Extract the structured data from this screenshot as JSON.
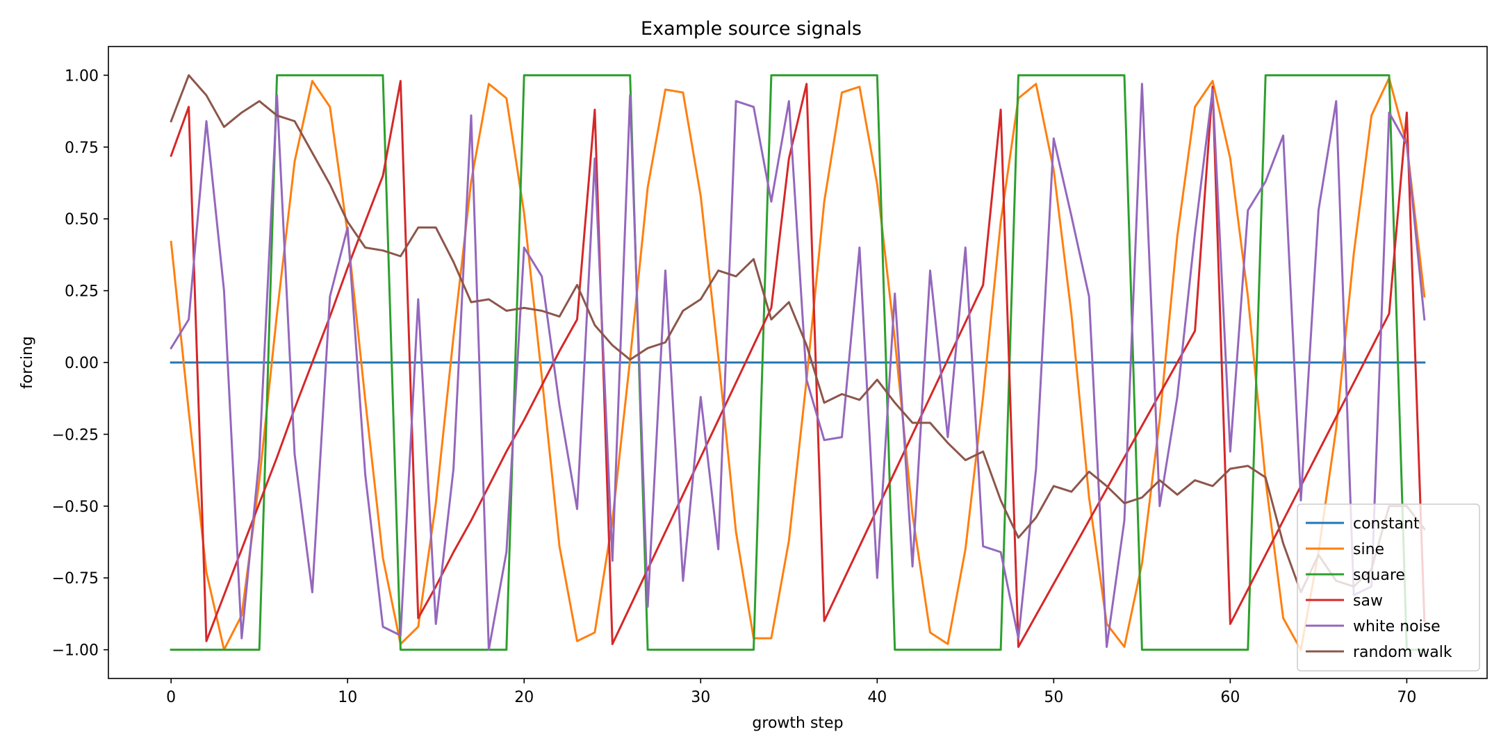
{
  "chart_data": {
    "type": "line",
    "title": "Example source signals",
    "xlabel": "growth step",
    "ylabel": "forcing",
    "xlim": [
      -3.55,
      74.55
    ],
    "ylim": [
      -1.1,
      1.1
    ],
    "xticks": [
      0,
      10,
      20,
      30,
      40,
      50,
      60,
      70
    ],
    "xtick_labels": [
      "0",
      "10",
      "20",
      "30",
      "40",
      "50",
      "60",
      "70"
    ],
    "yticks": [
      1.0,
      0.75,
      0.5,
      0.25,
      0.0,
      -0.25,
      -0.5,
      -0.75,
      -1.0
    ],
    "ytick_labels": [
      "1.00",
      "0.75",
      "0.50",
      "0.25",
      "0.00",
      "−0.25",
      "−0.50",
      "−0.75",
      "−1.00"
    ],
    "grid": false,
    "legend_position": "lower-right",
    "series": [
      {
        "name": "constant",
        "color": "#1f77b4",
        "values": [
          0,
          0,
          0,
          0,
          0,
          0,
          0,
          0,
          0,
          0,
          0,
          0,
          0,
          0,
          0,
          0,
          0,
          0,
          0,
          0,
          0,
          0,
          0,
          0,
          0,
          0,
          0,
          0,
          0,
          0,
          0,
          0,
          0,
          0,
          0,
          0,
          0,
          0,
          0,
          0,
          0,
          0,
          0,
          0,
          0,
          0,
          0,
          0,
          0,
          0,
          0,
          0,
          0,
          0,
          0,
          0,
          0,
          0,
          0,
          0,
          0,
          0,
          0,
          0,
          0,
          0,
          0,
          0,
          0,
          0,
          0,
          0
        ]
      },
      {
        "name": "sine",
        "color": "#ff7f0e",
        "values": [
          0.42,
          -0.17,
          -0.73,
          -1.0,
          -0.88,
          -0.41,
          0.17,
          0.7,
          0.98,
          0.89,
          0.45,
          -0.13,
          -0.68,
          -0.98,
          -0.92,
          -0.49,
          0.09,
          0.63,
          0.97,
          0.92,
          0.52,
          -0.05,
          -0.64,
          -0.97,
          -0.94,
          -0.55,
          0.01,
          0.61,
          0.95,
          0.94,
          0.58,
          0.02,
          -0.59,
          -0.96,
          -0.96,
          -0.62,
          -0.06,
          0.56,
          0.94,
          0.96,
          0.62,
          0.08,
          -0.53,
          -0.94,
          -0.98,
          -0.65,
          -0.12,
          0.49,
          0.92,
          0.97,
          0.67,
          0.17,
          -0.47,
          -0.91,
          -0.99,
          -0.7,
          -0.2,
          0.44,
          0.89,
          0.98,
          0.71,
          0.23,
          -0.41,
          -0.89,
          -1.0,
          -0.66,
          -0.23,
          0.38,
          0.86,
          0.99,
          0.76,
          0.23
        ]
      },
      {
        "name": "square",
        "color": "#2ca02c",
        "values": [
          -1,
          -1,
          -1,
          -1,
          -1,
          -1,
          1,
          1,
          1,
          1,
          1,
          1,
          1,
          -1,
          -1,
          -1,
          -1,
          -1,
          -1,
          -1,
          1,
          1,
          1,
          1,
          1,
          1,
          1,
          -1,
          -1,
          -1,
          -1,
          -1,
          -1,
          -1,
          1,
          1,
          1,
          1,
          1,
          1,
          1,
          -1,
          -1,
          -1,
          -1,
          -1,
          -1,
          -1,
          1,
          1,
          1,
          1,
          1,
          1,
          1,
          -1,
          -1,
          -1,
          -1,
          -1,
          -1,
          -1,
          1,
          1,
          1,
          1,
          1,
          1,
          1,
          1,
          -1,
          -1
        ]
      },
      {
        "name": "saw",
        "color": "#d62728",
        "values": [
          0.72,
          0.89,
          -0.97,
          -0.81,
          -0.65,
          -0.49,
          -0.33,
          -0.16,
          0.0,
          0.16,
          0.33,
          0.49,
          0.65,
          0.98,
          -0.89,
          -0.78,
          -0.66,
          -0.55,
          -0.43,
          -0.31,
          -0.2,
          -0.08,
          0.04,
          0.15,
          0.88,
          -0.98,
          -0.85,
          -0.72,
          -0.59,
          -0.46,
          -0.33,
          -0.2,
          -0.07,
          0.06,
          0.19,
          0.71,
          0.97,
          -0.9,
          -0.77,
          -0.64,
          -0.51,
          -0.38,
          -0.25,
          -0.12,
          0.01,
          0.14,
          0.27,
          0.88,
          -0.99,
          -0.88,
          -0.77,
          -0.66,
          -0.55,
          -0.44,
          -0.33,
          -0.22,
          -0.11,
          0.0,
          0.11,
          0.96,
          -0.91,
          -0.79,
          -0.67,
          -0.55,
          -0.43,
          -0.31,
          -0.19,
          -0.07,
          0.05,
          0.17,
          0.87,
          -0.9
        ]
      },
      {
        "name": "white noise",
        "color": "#9467bd",
        "values": [
          0.05,
          0.15,
          0.84,
          0.25,
          -0.96,
          -0.33,
          0.93,
          -0.32,
          -0.8,
          0.23,
          0.47,
          -0.39,
          -0.92,
          -0.95,
          0.22,
          -0.91,
          -0.37,
          0.86,
          -1.0,
          -0.66,
          0.4,
          0.3,
          -0.15,
          -0.51,
          0.71,
          -0.69,
          0.93,
          -0.85,
          0.32,
          -0.76,
          -0.12,
          -0.65,
          0.91,
          0.89,
          0.56,
          0.91,
          -0.06,
          -0.27,
          -0.26,
          0.4,
          -0.75,
          0.24,
          -0.71,
          0.32,
          -0.26,
          0.4,
          -0.64,
          -0.66,
          -0.96,
          -0.37,
          0.78,
          0.51,
          0.23,
          -0.99,
          -0.55,
          0.97,
          -0.5,
          -0.12,
          0.45,
          0.95,
          -0.31,
          0.53,
          0.63,
          0.79,
          -0.48,
          0.53,
          0.91,
          -0.81,
          -0.78,
          0.87,
          0.76,
          0.15
        ]
      },
      {
        "name": "random walk",
        "color": "#8c564b",
        "values": [
          0.84,
          1.0,
          0.93,
          0.82,
          0.87,
          0.91,
          0.86,
          0.84,
          0.73,
          0.62,
          0.49,
          0.4,
          0.39,
          0.37,
          0.47,
          0.47,
          0.35,
          0.21,
          0.22,
          0.18,
          0.19,
          0.18,
          0.16,
          0.27,
          0.13,
          0.06,
          0.01,
          0.05,
          0.07,
          0.18,
          0.22,
          0.32,
          0.3,
          0.36,
          0.15,
          0.21,
          0.06,
          -0.14,
          -0.11,
          -0.13,
          -0.06,
          -0.14,
          -0.21,
          -0.21,
          -0.28,
          -0.34,
          -0.31,
          -0.48,
          -0.61,
          -0.54,
          -0.43,
          -0.45,
          -0.38,
          -0.43,
          -0.49,
          -0.47,
          -0.41,
          -0.46,
          -0.41,
          -0.43,
          -0.37,
          -0.36,
          -0.4,
          -0.63,
          -0.8,
          -0.67,
          -0.76,
          -0.78,
          -0.72,
          -0.5,
          -0.5,
          -0.58
        ]
      }
    ]
  }
}
